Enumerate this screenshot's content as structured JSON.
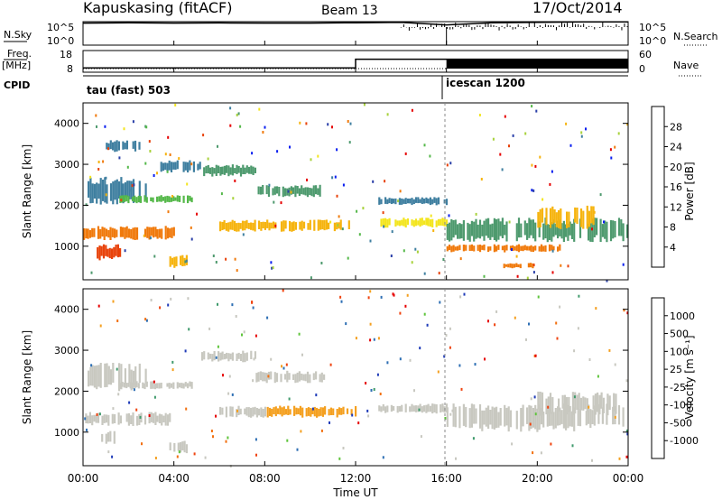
{
  "header": {
    "title": "Kapuskasing (fitACF)",
    "beam": "Beam 13",
    "date": "17/Oct/2014"
  },
  "noise_panel": {
    "left_label": "N.Sky",
    "left_ticks": [
      "10^5",
      "10^0"
    ],
    "right_ticks": [
      "10^5",
      "10^0"
    ],
    "right_label": "N.Search"
  },
  "freq_panel": {
    "left_label_1": "Freq.",
    "left_label_2": "[MHz]",
    "left_ticks": [
      "18",
      "8"
    ],
    "right_ticks": [
      "60",
      "0"
    ],
    "right_label": "Nave"
  },
  "cpid": {
    "label": "CPID",
    "segments": [
      "tau (fast) 503",
      "icescan 1200"
    ]
  },
  "power_panel": {
    "ylabel": "Slant Range [km]",
    "yticks": [
      "4000",
      "3000",
      "2000",
      "1000"
    ],
    "colorbar_label": "Power [dB]",
    "colorbar_ticks": [
      "28",
      "24",
      "20",
      "16",
      "12",
      "8",
      "4"
    ],
    "colors": [
      "#0a1ff0",
      "#2a3fa8",
      "#3f7fa0",
      "#4e9a6e",
      "#55b84a",
      "#a8d23c",
      "#f3e51e",
      "#f6b40f",
      "#f07a0c",
      "#e8420a",
      "#e60000"
    ]
  },
  "velocity_panel": {
    "ylabel": "Slant Range [km]",
    "yticks": [
      "4000",
      "3000",
      "2000",
      "1000"
    ],
    "colorbar_label": "Velocity [m s⁻¹]",
    "colorbar_ticks": [
      "1000",
      "500",
      "100",
      "25",
      "-25",
      "-100",
      "-500",
      "-1000"
    ],
    "colors": [
      "#1f3bb8",
      "#2e6fb4",
      "#3f9a6c",
      "#5fc43c",
      "#c8c8c0",
      "#c8c8c0",
      "#f4a020",
      "#f27010",
      "#ef4410",
      "#e60000"
    ]
  },
  "xaxis": {
    "label": "Time UT",
    "ticks": [
      "00:00",
      "04:00",
      "08:00",
      "12:00",
      "16:00",
      "20:00",
      "00:00"
    ]
  },
  "chart_data": [
    {
      "type": "line",
      "title": "Kapuskasing (fitACF)",
      "xlabel": "Time UT",
      "ylabel": "N.Sky",
      "y_scale": "log",
      "ylim": [
        1,
        100000
      ],
      "series": [
        {
          "name": "N.Sky",
          "x_hours": [
            0,
            2,
            4,
            6,
            8,
            10,
            12,
            14,
            16,
            18,
            20,
            22,
            24
          ],
          "values": [
            50000,
            60000,
            50000,
            55000,
            50000,
            50000,
            60000,
            70000,
            20000,
            60000,
            70000,
            90000,
            90000
          ]
        }
      ]
    },
    {
      "type": "line",
      "xlabel": "Time UT",
      "ylabel": "Freq. [MHz]",
      "ylim": [
        8,
        18
      ],
      "series": [
        {
          "name": "Freq.",
          "x_hours": [
            0,
            12,
            12,
            16,
            16,
            24
          ],
          "values": [
            10,
            10,
            14,
            14,
            14,
            14
          ]
        },
        {
          "name": "Nave",
          "x_hours": [
            0,
            24
          ],
          "values": [
            8,
            8
          ]
        }
      ]
    },
    {
      "type": "heatmap",
      "ylabel": "Slant Range [km]",
      "colorbar": "Power [dB]",
      "ylim": [
        180,
        4500
      ],
      "xlim_hours": [
        0,
        24
      ],
      "bands": [
        {
          "t0": 0.0,
          "t1": 4.0,
          "r0": 1150,
          "r1": 1500,
          "value": 24
        },
        {
          "t0": 0.6,
          "t1": 1.6,
          "r0": 650,
          "r1": 1050,
          "value": 28
        },
        {
          "t0": 0.2,
          "t1": 2.8,
          "r0": 2000,
          "r1": 2700,
          "value": 8
        },
        {
          "t0": 1.0,
          "t1": 2.6,
          "r0": 3300,
          "r1": 3600,
          "value": 6
        },
        {
          "t0": 1.6,
          "t1": 4.8,
          "r0": 2050,
          "r1": 2250,
          "value": 14
        },
        {
          "t0": 3.4,
          "t1": 5.2,
          "r0": 2800,
          "r1": 3100,
          "value": 6
        },
        {
          "t0": 3.8,
          "t1": 4.6,
          "r0": 450,
          "r1": 800,
          "value": 22
        },
        {
          "t0": 5.2,
          "t1": 7.6,
          "r0": 2700,
          "r1": 3000,
          "value": 10
        },
        {
          "t0": 6.0,
          "t1": 12.0,
          "r0": 1350,
          "r1": 1650,
          "value": 22
        },
        {
          "t0": 7.6,
          "t1": 10.6,
          "r0": 2200,
          "r1": 2500,
          "value": 10
        },
        {
          "t0": 13.0,
          "t1": 16.0,
          "r0": 1450,
          "r1": 1700,
          "value": 20
        },
        {
          "t0": 13.0,
          "t1": 16.0,
          "r0": 2000,
          "r1": 2200,
          "value": 8
        },
        {
          "t0": 16.0,
          "t1": 24.0,
          "r0": 1100,
          "r1": 1700,
          "value": 10
        },
        {
          "t0": 16.0,
          "t1": 21.0,
          "r0": 850,
          "r1": 1050,
          "value": 24
        },
        {
          "t0": 18.5,
          "t1": 19.8,
          "r0": 450,
          "r1": 600,
          "value": 26
        },
        {
          "t0": 20.0,
          "t1": 22.5,
          "r0": 1400,
          "r1": 2000,
          "value": 22
        }
      ]
    },
    {
      "type": "heatmap",
      "ylabel": "Slant Range [km]",
      "colorbar": "Velocity [m s-1]",
      "ylim": [
        180,
        4500
      ],
      "xlim_hours": [
        0,
        24
      ],
      "bands": [
        {
          "t0": 0.0,
          "t1": 4.0,
          "r0": 1150,
          "r1": 1500,
          "value": 0
        },
        {
          "t0": 0.8,
          "t1": 1.4,
          "r0": 650,
          "r1": 1050,
          "value": 200
        },
        {
          "t0": 0.2,
          "t1": 2.8,
          "r0": 2000,
          "r1": 2700,
          "value": 0
        },
        {
          "t0": 1.6,
          "t1": 4.8,
          "r0": 2050,
          "r1": 2250,
          "value": 0
        },
        {
          "t0": 3.8,
          "t1": 4.6,
          "r0": 450,
          "r1": 800,
          "value": 200
        },
        {
          "t0": 5.2,
          "t1": 7.6,
          "r0": 2700,
          "r1": 3000,
          "value": 0
        },
        {
          "t0": 6.0,
          "t1": 8.0,
          "r0": 1350,
          "r1": 1650,
          "value": 0
        },
        {
          "t0": 8.0,
          "t1": 12.0,
          "r0": 1350,
          "r1": 1650,
          "value": -300
        },
        {
          "t0": 7.6,
          "t1": 10.6,
          "r0": 2200,
          "r1": 2500,
          "value": 0
        },
        {
          "t0": 13.0,
          "t1": 16.0,
          "r0": 1450,
          "r1": 1700,
          "value": 0
        },
        {
          "t0": 16.0,
          "t1": 24.0,
          "r0": 1000,
          "r1": 1700,
          "value": 0
        },
        {
          "t0": 20.0,
          "t1": 23.5,
          "r0": 1400,
          "r1": 2000,
          "value": 150
        }
      ]
    }
  ]
}
